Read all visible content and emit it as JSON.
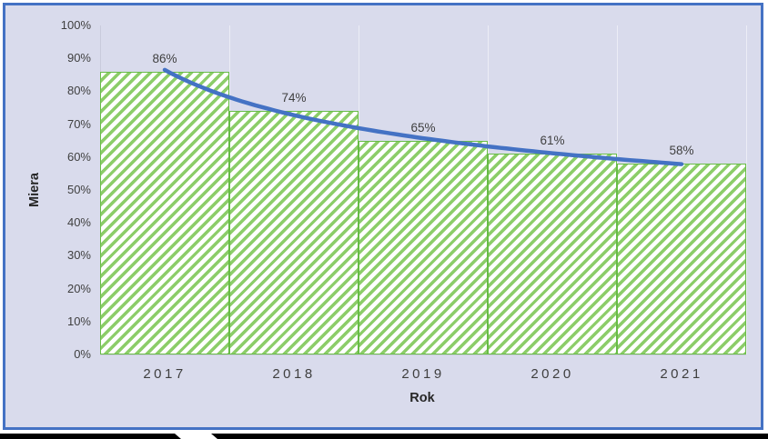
{
  "chart_data": {
    "type": "bar",
    "title": "",
    "categories": [
      "2017",
      "2018",
      "2019",
      "2020",
      "2021"
    ],
    "values": [
      86,
      74,
      65,
      61,
      58
    ],
    "data_labels": [
      "86%",
      "74%",
      "65%",
      "61%",
      "58%"
    ],
    "xlabel": "Rok",
    "ylabel": "Miera",
    "ylim": [
      0,
      100
    ],
    "ytick_step": 10,
    "ytick_labels": [
      "0%",
      "10%",
      "20%",
      "30%",
      "40%",
      "50%",
      "60%",
      "70%",
      "80%",
      "90%",
      "100%"
    ],
    "grid": "vertical category gridlines only",
    "legend": "none",
    "bar_style": "white fill with green diagonal hatch, green border, zero gap width",
    "trendline": {
      "type": "power",
      "fits_values": [
        86,
        74,
        65,
        61,
        58
      ],
      "color": "#4472C4"
    },
    "colors": {
      "plot_background": "#D9DBEC",
      "frame_border": "#4472C4",
      "bar_hatch": "#8CCD69",
      "bar_border": "#68BC47",
      "trendline": "#4472C4",
      "gridline": "#ECEDF6",
      "axis_line": "#C9CBDB",
      "text": "#3F3F3F"
    }
  }
}
